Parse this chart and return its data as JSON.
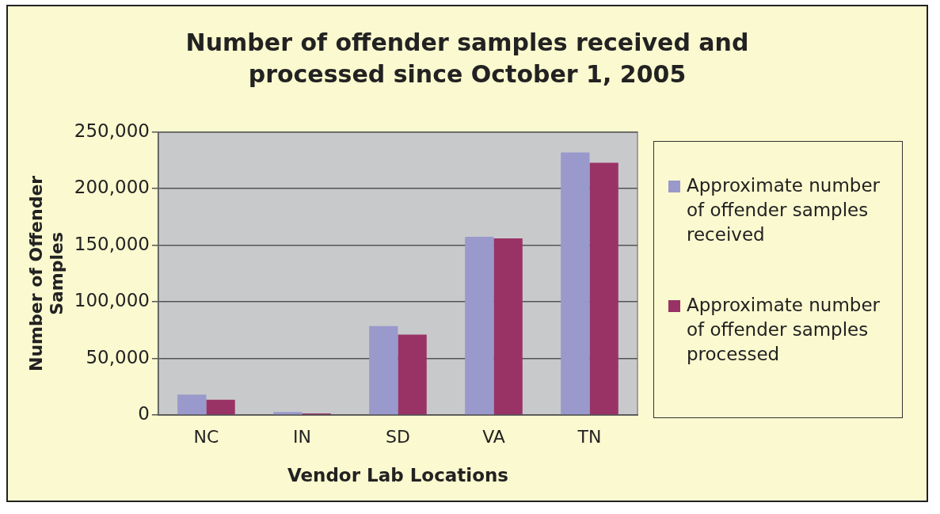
{
  "chart_data": {
    "type": "bar",
    "title": "Number of offender samples received and processed since October 1, 2005",
    "xlabel": "Vendor Lab Locations",
    "ylabel": "Number of Offender Samples",
    "categories": [
      "NC",
      "IN",
      "SD",
      "VA",
      "TN"
    ],
    "series": [
      {
        "name": "Approximate number of offender samples received",
        "color": "#9999cc",
        "values": [
          18000,
          2700,
          78500,
          157500,
          232000
        ]
      },
      {
        "name": "Approximate number of offender samples processed",
        "color": "#993366",
        "values": [
          13500,
          1400,
          71000,
          156000,
          223000
        ]
      }
    ],
    "ylim": [
      0,
      250000
    ],
    "yticks": [
      {
        "value": 0,
        "label": "0"
      },
      {
        "value": 50000,
        "label": "50,000"
      },
      {
        "value": 100000,
        "label": "100,000"
      },
      {
        "value": 150000,
        "label": "150,000"
      },
      {
        "value": 200000,
        "label": "200,000"
      },
      {
        "value": 250000,
        "label": "250,000"
      }
    ],
    "grid": "y",
    "legend": "right"
  }
}
